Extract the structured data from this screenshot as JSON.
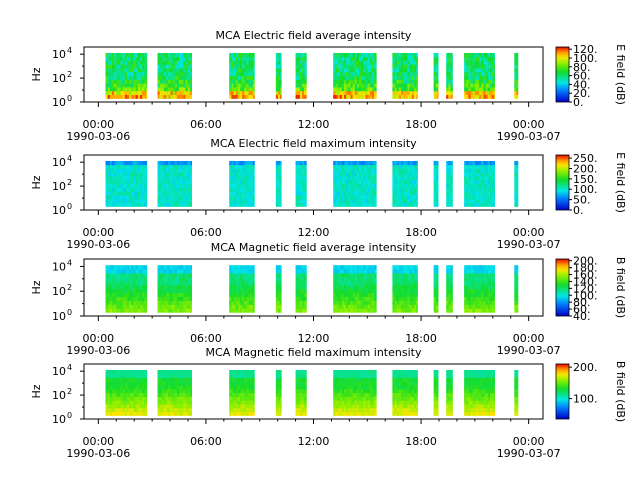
{
  "colors": {
    "background": "#ffffff",
    "axes": "#000000"
  },
  "chart_data": [
    {
      "type": "heatmap",
      "title": "MCA  Electric field average intensity",
      "ylabel": "Hz",
      "colorbar_label": "E field (dB)",
      "colorbar_ticks": [
        "0.",
        "20.",
        "40.",
        "60.",
        "80.",
        "100.",
        "120."
      ],
      "colorbar_range": [
        0,
        125
      ],
      "y_ticks": [
        "10",
        "10",
        "10"
      ],
      "y_tick_exponents": [
        "0",
        "2",
        "4"
      ],
      "ylim_log10": [
        0,
        4.6
      ],
      "x_ticks": [
        "00:00",
        "06:00",
        "12:00",
        "18:00",
        "00:00"
      ],
      "x_dates": [
        "1990-03-06",
        "1990-03-07"
      ],
      "xlim_hours": [
        -0.8,
        24.8
      ],
      "intervals_hours": [
        [
          0.4,
          2.7
        ],
        [
          3.3,
          5.2
        ],
        [
          7.3,
          8.7
        ],
        [
          9.9,
          10.2
        ],
        [
          11.0,
          11.6
        ],
        [
          13.1,
          15.5
        ],
        [
          16.4,
          17.8
        ],
        [
          18.7,
          18.95
        ],
        [
          19.4,
          19.75
        ],
        [
          20.4,
          22.1
        ],
        [
          23.2,
          23.4
        ]
      ],
      "freq_log10_range": [
        0.3,
        4.1
      ],
      "color_scale": "rainbow"
    },
    {
      "type": "heatmap",
      "title": "MCA  Electric field maximum intensity",
      "ylabel": "Hz",
      "colorbar_label": "E field (dB)",
      "colorbar_ticks": [
        "0.",
        "50.",
        "100.",
        "150.",
        "200.",
        "250."
      ],
      "colorbar_range": [
        0,
        265
      ],
      "y_ticks": [
        "10",
        "10",
        "10"
      ],
      "y_tick_exponents": [
        "0",
        "2",
        "4"
      ],
      "ylim_log10": [
        0,
        4.6
      ],
      "x_ticks": [
        "00:00",
        "06:00",
        "12:00",
        "18:00",
        "00:00"
      ],
      "x_dates": [
        "1990-03-06",
        "1990-03-07"
      ],
      "xlim_hours": [
        -0.8,
        24.8
      ],
      "intervals_hours": [
        [
          0.4,
          2.7
        ],
        [
          3.3,
          5.2
        ],
        [
          7.3,
          8.7
        ],
        [
          9.9,
          10.2
        ],
        [
          11.0,
          11.6
        ],
        [
          13.1,
          15.5
        ],
        [
          16.4,
          17.8
        ],
        [
          18.7,
          18.95
        ],
        [
          19.4,
          19.75
        ],
        [
          20.4,
          22.1
        ],
        [
          23.2,
          23.4
        ]
      ],
      "freq_log10_range": [
        0.3,
        4.1
      ],
      "color_scale": "rainbow"
    },
    {
      "type": "heatmap",
      "title": "MCA  Magnetic field average intensity",
      "ylabel": "Hz",
      "colorbar_label": "B field (dB)",
      "colorbar_ticks": [
        "40.",
        "60.",
        "80.",
        "100.",
        "120.",
        "140.",
        "160.",
        "180.",
        "200."
      ],
      "colorbar_range": [
        40,
        205
      ],
      "y_ticks": [
        "10",
        "10",
        "10"
      ],
      "y_tick_exponents": [
        "0",
        "2",
        "4"
      ],
      "ylim_log10": [
        0,
        4.6
      ],
      "x_ticks": [
        "00:00",
        "06:00",
        "12:00",
        "18:00",
        "00:00"
      ],
      "x_dates": [
        "1990-03-06",
        "1990-03-07"
      ],
      "xlim_hours": [
        -0.8,
        24.8
      ],
      "intervals_hours": [
        [
          0.4,
          2.7
        ],
        [
          3.3,
          5.2
        ],
        [
          7.3,
          8.7
        ],
        [
          9.9,
          10.2
        ],
        [
          11.0,
          11.6
        ],
        [
          13.1,
          15.5
        ],
        [
          16.4,
          17.8
        ],
        [
          18.7,
          18.95
        ],
        [
          19.4,
          19.75
        ],
        [
          20.4,
          22.1
        ],
        [
          23.2,
          23.4
        ]
      ],
      "freq_log10_range": [
        0.3,
        4.1
      ],
      "color_scale": "rainbow"
    },
    {
      "type": "heatmap",
      "title": "MCA  Magnetic field maximum intensity",
      "ylabel": "Hz",
      "colorbar_label": "B field (dB)",
      "colorbar_ticks": [
        "100.",
        "200."
      ],
      "colorbar_range": [
        35,
        210
      ],
      "y_ticks": [
        "10",
        "10",
        "10"
      ],
      "y_tick_exponents": [
        "0",
        "2",
        "4"
      ],
      "ylim_log10": [
        0,
        4.6
      ],
      "x_ticks": [
        "00:00",
        "06:00",
        "12:00",
        "18:00",
        "00:00"
      ],
      "x_dates": [
        "1990-03-06",
        "1990-03-07"
      ],
      "xlim_hours": [
        -0.8,
        24.8
      ],
      "intervals_hours": [
        [
          0.4,
          2.7
        ],
        [
          3.3,
          5.2
        ],
        [
          7.3,
          8.7
        ],
        [
          9.9,
          10.2
        ],
        [
          11.0,
          11.6
        ],
        [
          13.1,
          15.5
        ],
        [
          16.4,
          17.8
        ],
        [
          18.7,
          18.95
        ],
        [
          19.4,
          19.75
        ],
        [
          20.4,
          22.1
        ],
        [
          23.2,
          23.4
        ]
      ],
      "freq_log10_range": [
        0.3,
        4.1
      ],
      "color_scale": "rainbow"
    }
  ]
}
